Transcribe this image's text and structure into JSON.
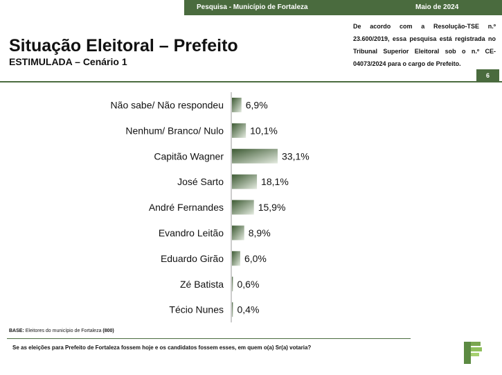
{
  "header": {
    "survey_label": "Pesquisa - Município de Fortaleza",
    "date_label": "Maio de 2024",
    "title": "Situação Eleitoral – Prefeito",
    "subtitle": "ESTIMULADA – Cenário 1",
    "registration_note": "De acordo com a Resolução-TSE n.º 23.600/2019, essa pesquisa está registrada no Tribunal Superior Eleitoral sob o n.º CE-04073/2024 para o cargo de Prefeito.",
    "page_number": "6"
  },
  "footer": {
    "base_label": "BASE:",
    "base_text": "Eleitores do município de Fortaleza",
    "base_count": "(800)",
    "question": "Se as eleições para Prefeito de Fortaleza fossem hoje e os candidatos fossem esses, em quem o(a) Sr(a) votaria?"
  },
  "colors": {
    "brand": "#4a6b3e",
    "bar_dark": "#3d5a33",
    "bar_light": "#e4ebe0"
  },
  "chart_data": {
    "type": "bar",
    "orientation": "horizontal",
    "categories": [
      "Não sabe/ Não respondeu",
      "Nenhum/ Branco/ Nulo",
      "Capitão Wagner",
      "José Sarto",
      "André Fernandes",
      "Evandro Leitão",
      "Eduardo Girão",
      "Zé Batista",
      "Técio Nunes"
    ],
    "values": [
      6.9,
      10.1,
      33.1,
      18.1,
      15.9,
      8.9,
      6.0,
      0.6,
      0.4
    ],
    "value_labels": [
      "6,9%",
      "10,1%",
      "33,1%",
      "18,1%",
      "15,9%",
      "8,9%",
      "6,0%",
      "0,6%",
      "0,4%"
    ],
    "xlim": [
      0,
      33.1
    ]
  }
}
